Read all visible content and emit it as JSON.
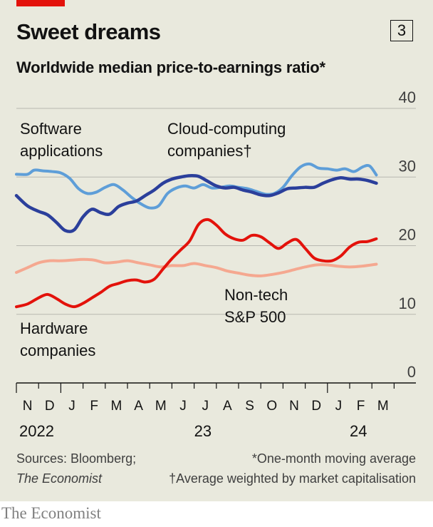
{
  "header": {
    "title": "Sweet dreams",
    "chart_number": "3",
    "subtitle": "Worldwide median price-to-earnings ratio*"
  },
  "footer": {
    "sources": "Sources: Bloomberg;",
    "sources_2": "The Economist",
    "note_1": "*One-month moving average",
    "note_2": "†Average weighted by market capitalisation",
    "brand": "The Economist"
  },
  "colors": {
    "background": "#e9e9dd",
    "accent_red": "#e3120b",
    "software": "#5e9ed8",
    "cloud": "#2b3f9b",
    "hardware": "#e3120b",
    "sp500": "#f5a890"
  },
  "chart_data": {
    "type": "line",
    "ylim": [
      0,
      40
    ],
    "yticks": [
      0,
      10,
      20,
      30,
      40
    ],
    "x_month_labels": [
      "N",
      "D",
      "J",
      "F",
      "M",
      "A",
      "M",
      "J",
      "J",
      "A",
      "S",
      "O",
      "N",
      "D",
      "J",
      "F",
      "M"
    ],
    "x_year_labels": [
      {
        "label": "2022",
        "month_index": 0
      },
      {
        "label": "23",
        "month_index": 8
      },
      {
        "label": "24",
        "month_index": 15
      }
    ],
    "x_range_months": [
      0,
      16.3
    ],
    "series": [
      {
        "name": "Software applications",
        "color_key": "software",
        "points": [
          [
            0,
            30.4
          ],
          [
            0.5,
            30.4
          ],
          [
            0.8,
            31
          ],
          [
            1.2,
            30.9
          ],
          [
            1.6,
            30.8
          ],
          [
            2,
            30.6
          ],
          [
            2.4,
            29.8
          ],
          [
            2.8,
            28.3
          ],
          [
            3.2,
            27.6
          ],
          [
            3.6,
            27.8
          ],
          [
            4,
            28.5
          ],
          [
            4.4,
            28.9
          ],
          [
            4.8,
            28.1
          ],
          [
            5.2,
            27
          ],
          [
            5.6,
            26.1
          ],
          [
            6,
            25.5
          ],
          [
            6.4,
            25.8
          ],
          [
            6.8,
            27.6
          ],
          [
            7.2,
            28.4
          ],
          [
            7.6,
            28.7
          ],
          [
            8,
            28.4
          ],
          [
            8.4,
            28.9
          ],
          [
            8.8,
            28.4
          ],
          [
            9.2,
            28.5
          ],
          [
            9.6,
            28.7
          ],
          [
            10,
            28.5
          ],
          [
            10.4,
            28.3
          ],
          [
            10.8,
            27.9
          ],
          [
            11.2,
            27.5
          ],
          [
            11.6,
            27.6
          ],
          [
            12,
            28.5
          ],
          [
            12.4,
            30.2
          ],
          [
            12.8,
            31.5
          ],
          [
            13.2,
            31.9
          ],
          [
            13.6,
            31.3
          ],
          [
            14,
            31.2
          ],
          [
            14.4,
            31
          ],
          [
            14.8,
            31.2
          ],
          [
            15.2,
            30.8
          ],
          [
            15.6,
            31.5
          ],
          [
            15.9,
            31.6
          ],
          [
            16.2,
            30.3
          ]
        ]
      },
      {
        "name": "Cloud-computing companies†",
        "color_key": "cloud",
        "points": [
          [
            0,
            27.3
          ],
          [
            0.5,
            25.8
          ],
          [
            1,
            25
          ],
          [
            1.4,
            24.5
          ],
          [
            1.8,
            23.4
          ],
          [
            2.2,
            22.2
          ],
          [
            2.6,
            22.3
          ],
          [
            3,
            24.2
          ],
          [
            3.4,
            25.3
          ],
          [
            3.8,
            24.8
          ],
          [
            4.2,
            24.6
          ],
          [
            4.6,
            25.7
          ],
          [
            5,
            26.2
          ],
          [
            5.4,
            26.5
          ],
          [
            5.8,
            27.3
          ],
          [
            6.2,
            28.1
          ],
          [
            6.6,
            29.1
          ],
          [
            7,
            29.7
          ],
          [
            7.4,
            30
          ],
          [
            7.8,
            30.2
          ],
          [
            8.2,
            30.1
          ],
          [
            8.6,
            29.4
          ],
          [
            9,
            28.7
          ],
          [
            9.4,
            28.4
          ],
          [
            9.8,
            28.5
          ],
          [
            10.2,
            28.1
          ],
          [
            10.6,
            27.8
          ],
          [
            11,
            27.4
          ],
          [
            11.4,
            27.3
          ],
          [
            11.8,
            27.7
          ],
          [
            12.2,
            28.3
          ],
          [
            12.6,
            28.4
          ],
          [
            13,
            28.5
          ],
          [
            13.4,
            28.5
          ],
          [
            13.8,
            29.1
          ],
          [
            14.2,
            29.6
          ],
          [
            14.6,
            29.9
          ],
          [
            15,
            29.7
          ],
          [
            15.4,
            29.7
          ],
          [
            15.8,
            29.5
          ],
          [
            16.2,
            29.1
          ]
        ]
      },
      {
        "name": "Hardware companies",
        "color_key": "hardware",
        "points": [
          [
            0,
            11.1
          ],
          [
            0.5,
            11.5
          ],
          [
            1,
            12.4
          ],
          [
            1.4,
            12.9
          ],
          [
            1.8,
            12.3
          ],
          [
            2.2,
            11.5
          ],
          [
            2.6,
            11.1
          ],
          [
            3,
            11.6
          ],
          [
            3.4,
            12.4
          ],
          [
            3.8,
            13.2
          ],
          [
            4.2,
            14.1
          ],
          [
            4.6,
            14.5
          ],
          [
            5,
            14.9
          ],
          [
            5.4,
            15
          ],
          [
            5.8,
            14.7
          ],
          [
            6.2,
            15.1
          ],
          [
            6.6,
            16.6
          ],
          [
            7,
            18.1
          ],
          [
            7.4,
            19.4
          ],
          [
            7.8,
            20.7
          ],
          [
            8.2,
            23.1
          ],
          [
            8.6,
            23.8
          ],
          [
            9,
            23
          ],
          [
            9.4,
            21.7
          ],
          [
            9.8,
            21
          ],
          [
            10.2,
            20.8
          ],
          [
            10.6,
            21.5
          ],
          [
            11,
            21.3
          ],
          [
            11.4,
            20.4
          ],
          [
            11.8,
            19.6
          ],
          [
            12.2,
            20.4
          ],
          [
            12.6,
            20.9
          ],
          [
            13,
            19.6
          ],
          [
            13.4,
            18.2
          ],
          [
            13.8,
            17.8
          ],
          [
            14.2,
            17.8
          ],
          [
            14.6,
            18.5
          ],
          [
            15,
            19.8
          ],
          [
            15.4,
            20.5
          ],
          [
            15.8,
            20.6
          ],
          [
            16.2,
            21
          ]
        ]
      },
      {
        "name": "Non-tech S&P 500",
        "color_key": "sp500",
        "points": [
          [
            0,
            16.1
          ],
          [
            0.5,
            16.8
          ],
          [
            1,
            17.5
          ],
          [
            1.5,
            17.8
          ],
          [
            2,
            17.8
          ],
          [
            2.5,
            17.9
          ],
          [
            3,
            18
          ],
          [
            3.5,
            17.9
          ],
          [
            4,
            17.5
          ],
          [
            4.5,
            17.6
          ],
          [
            5,
            17.8
          ],
          [
            5.5,
            17.5
          ],
          [
            6,
            17.2
          ],
          [
            6.5,
            16.9
          ],
          [
            7,
            17.1
          ],
          [
            7.5,
            17.1
          ],
          [
            8,
            17.4
          ],
          [
            8.5,
            17.1
          ],
          [
            9,
            16.8
          ],
          [
            9.5,
            16.3
          ],
          [
            10,
            16
          ],
          [
            10.5,
            15.7
          ],
          [
            11,
            15.6
          ],
          [
            11.5,
            15.8
          ],
          [
            12,
            16.1
          ],
          [
            12.5,
            16.5
          ],
          [
            13,
            16.9
          ],
          [
            13.5,
            17.2
          ],
          [
            14,
            17.2
          ],
          [
            14.5,
            17
          ],
          [
            15,
            16.9
          ],
          [
            15.5,
            17
          ],
          [
            16.2,
            17.3
          ]
        ]
      }
    ],
    "annotations": [
      {
        "lines": [
          "Software",
          "applications"
        ],
        "series": "Software applications"
      },
      {
        "lines": [
          "Cloud-computing",
          "companies†"
        ],
        "series": "Cloud-computing companies†"
      },
      {
        "lines": [
          "Hardware",
          "companies"
        ],
        "series": "Hardware companies"
      },
      {
        "lines": [
          "Non-tech",
          "S&P 500"
        ],
        "series": "Non-tech S&P 500"
      }
    ]
  }
}
